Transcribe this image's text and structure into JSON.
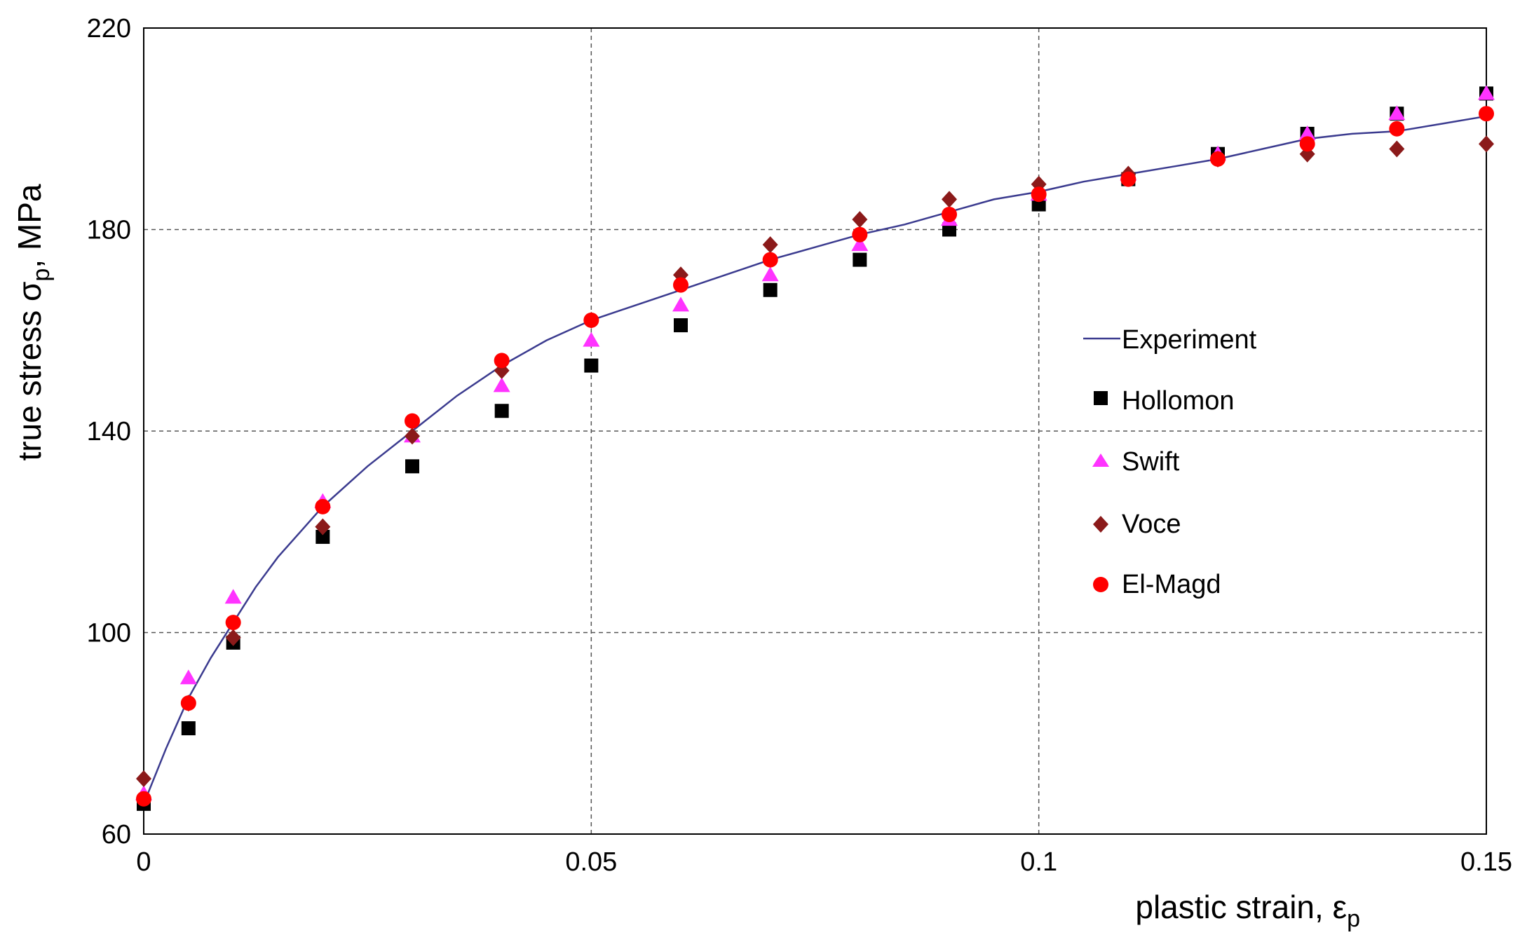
{
  "chart_data": {
    "type": "scatter",
    "xlabel": {
      "main": "plastic strain, ε",
      "sub": "p"
    },
    "ylabel": {
      "main": "true stress σ",
      "sub": "p",
      "suffix": ", MPa"
    },
    "xlim": [
      0,
      0.15
    ],
    "ylim": [
      60,
      220
    ],
    "xticks": [
      0,
      0.05,
      0.1,
      0.15
    ],
    "xtick_labels": [
      "0",
      "0.05",
      "0.1",
      "0.15"
    ],
    "yticks": [
      60,
      100,
      140,
      180,
      220
    ],
    "ytick_labels": [
      "60",
      "100",
      "140",
      "180",
      "220"
    ],
    "grid": true,
    "legend_position": "right",
    "series": [
      {
        "name": "Experiment",
        "kind": "line",
        "color": "#3b3b8f",
        "x": [
          0,
          0.0025,
          0.005,
          0.0075,
          0.01,
          0.0125,
          0.015,
          0.0175,
          0.02,
          0.025,
          0.03,
          0.035,
          0.04,
          0.045,
          0.05,
          0.055,
          0.06,
          0.065,
          0.07,
          0.075,
          0.08,
          0.085,
          0.09,
          0.095,
          0.1,
          0.105,
          0.11,
          0.115,
          0.12,
          0.125,
          0.13,
          0.135,
          0.14,
          0.145,
          0.15
        ],
        "y": [
          66,
          77,
          87,
          95,
          102,
          109,
          115,
          120,
          125,
          133,
          140,
          147,
          153,
          158,
          162,
          165,
          168,
          171,
          174,
          176.5,
          179,
          181,
          183.5,
          186,
          187.5,
          189.5,
          191,
          192.5,
          194,
          196,
          198,
          199,
          199.5,
          201,
          202.5
        ]
      },
      {
        "name": "Hollomon",
        "kind": "marker",
        "marker": "square",
        "color": "#000000",
        "x": [
          0,
          0.005,
          0.01,
          0.02,
          0.03,
          0.04,
          0.05,
          0.06,
          0.07,
          0.08,
          0.09,
          0.1,
          0.11,
          0.12,
          0.13,
          0.14,
          0.15
        ],
        "y": [
          66,
          81,
          98,
          119,
          133,
          144,
          153,
          161,
          168,
          174,
          180,
          185,
          190,
          195,
          199,
          203,
          207
        ]
      },
      {
        "name": "Swift",
        "kind": "marker",
        "marker": "triangle",
        "color": "#ff33ff",
        "x": [
          0,
          0.005,
          0.01,
          0.02,
          0.03,
          0.04,
          0.05,
          0.06,
          0.07,
          0.08,
          0.09,
          0.1,
          0.11,
          0.12,
          0.13,
          0.14,
          0.15
        ],
        "y": [
          68,
          91,
          107,
          126,
          139,
          149,
          158,
          165,
          171,
          177,
          182,
          187,
          191,
          195,
          199,
          203,
          207
        ]
      },
      {
        "name": "Voce",
        "kind": "marker",
        "marker": "diamond",
        "color": "#8b1a1a",
        "x": [
          0,
          0.005,
          0.01,
          0.02,
          0.03,
          0.04,
          0.05,
          0.06,
          0.07,
          0.08,
          0.09,
          0.1,
          0.11,
          0.12,
          0.13,
          0.14,
          0.15
        ],
        "y": [
          71,
          86,
          99,
          121,
          139,
          152,
          162,
          171,
          177,
          182,
          186,
          189,
          191,
          194,
          195,
          196,
          197
        ]
      },
      {
        "name": "El-Magd",
        "kind": "marker",
        "marker": "circle",
        "color": "#ff0000",
        "x": [
          0,
          0.005,
          0.01,
          0.02,
          0.03,
          0.04,
          0.05,
          0.06,
          0.07,
          0.08,
          0.09,
          0.1,
          0.11,
          0.12,
          0.13,
          0.14,
          0.15
        ],
        "y": [
          67,
          86,
          102,
          125,
          142,
          154,
          162,
          169,
          174,
          179,
          183,
          187,
          190,
          194,
          197,
          200,
          203
        ]
      }
    ]
  }
}
